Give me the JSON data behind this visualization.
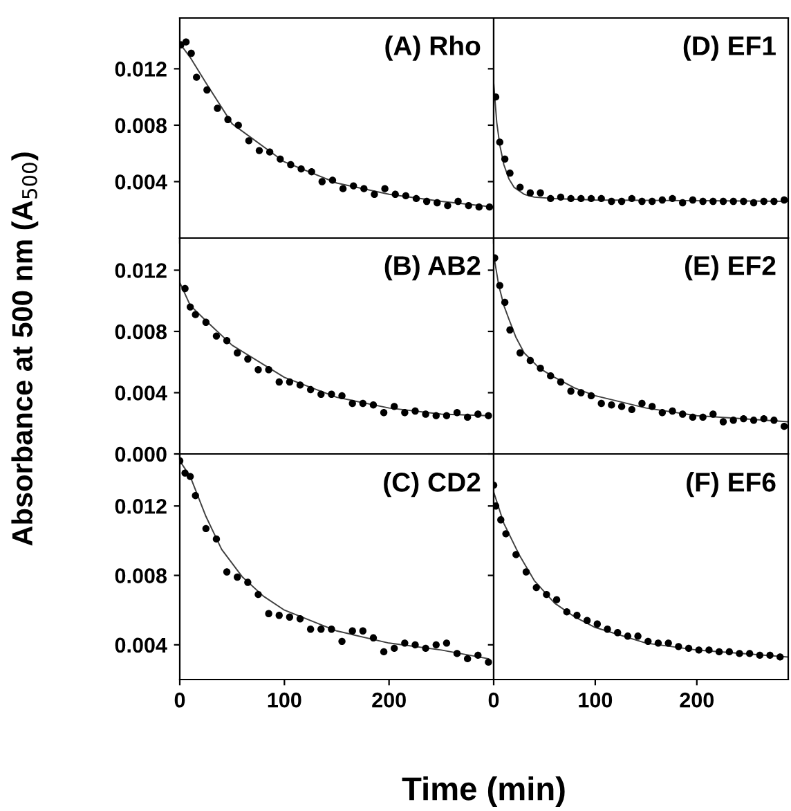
{
  "chart_data": [
    {
      "type": "scatter",
      "title": "(A) Rho",
      "xlim": [
        0,
        300
      ],
      "xticks": [
        0,
        100,
        200
      ],
      "ylim": [
        0,
        0.0156
      ],
      "yticks": [
        0.004,
        0.008,
        0.012
      ],
      "tick_labels": "y",
      "grid": false,
      "legend": false,
      "series": [
        {
          "color": "#000000",
          "marker": "circle",
          "x": [
            1,
            6,
            11,
            16,
            26,
            36,
            46,
            56,
            66,
            76,
            86,
            96,
            106,
            116,
            126,
            136,
            146,
            156,
            166,
            176,
            186,
            196,
            206,
            216,
            226,
            236,
            246,
            256,
            266,
            276,
            286,
            296
          ],
          "values": [
            0.0137,
            0.0139,
            0.0131,
            0.0114,
            0.0105,
            0.0092,
            0.0084,
            0.008,
            0.0069,
            0.0062,
            0.0061,
            0.0056,
            0.0052,
            0.0049,
            0.0047,
            0.004,
            0.0041,
            0.0035,
            0.0037,
            0.0035,
            0.0031,
            0.0035,
            0.0031,
            0.003,
            0.0028,
            0.0026,
            0.0025,
            0.0023,
            0.0026,
            0.0023,
            0.0022,
            0.0022
          ]
        },
        {
          "type": "line",
          "color": "#404040",
          "marker": "none",
          "x": [
            0,
            10,
            25,
            50,
            100,
            150,
            200,
            250,
            300
          ],
          "values": [
            0.0138,
            0.0128,
            0.011,
            0.0081,
            0.0054,
            0.0039,
            0.0031,
            0.0026,
            0.0022
          ]
        }
      ]
    },
    {
      "type": "scatter",
      "title": "(B) AB2",
      "ylabel": "Absorbance at 500 nm (A$_{500}$)",
      "xlim": [
        0,
        300
      ],
      "xticks": [
        0,
        100,
        200
      ],
      "ylim": [
        0,
        0.0141
      ],
      "yticks": [
        {
          "value": 0,
          "label": "0.000"
        },
        0.004,
        0.008,
        0.012
      ],
      "tick_labels": "y",
      "grid": false,
      "legend": false,
      "series": [
        {
          "color": "#000000",
          "marker": "circle",
          "x": [
            5,
            10,
            15,
            25,
            35,
            45,
            55,
            65,
            75,
            85,
            95,
            105,
            115,
            125,
            135,
            145,
            155,
            165,
            175,
            185,
            195,
            205,
            215,
            225,
            235,
            245,
            255,
            265,
            275,
            285,
            295
          ],
          "values": [
            0.0108,
            0.0096,
            0.0091,
            0.0086,
            0.0077,
            0.0074,
            0.0066,
            0.0062,
            0.0055,
            0.0055,
            0.0047,
            0.0047,
            0.0045,
            0.0042,
            0.0039,
            0.0039,
            0.0038,
            0.0033,
            0.0033,
            0.0032,
            0.0027,
            0.0031,
            0.0027,
            0.0028,
            0.0026,
            0.0025,
            0.0025,
            0.0027,
            0.0024,
            0.0026,
            0.0025
          ]
        },
        {
          "type": "line",
          "color": "#404040",
          "marker": "none",
          "x": [
            0,
            10,
            25,
            50,
            100,
            150,
            200,
            250,
            295
          ],
          "values": [
            0.0112,
            0.0097,
            0.0087,
            0.0071,
            0.005,
            0.0037,
            0.003,
            0.0026,
            0.0025
          ]
        }
      ]
    },
    {
      "type": "scatter",
      "title": "(C) CD2",
      "xlabel": "Time (min)",
      "xlim": [
        0,
        300
      ],
      "xticks": [
        0,
        100,
        200
      ],
      "ylim": [
        0.002,
        0.015
      ],
      "yticks": [
        0.004,
        0.008,
        0.012
      ],
      "grid": false,
      "legend": false,
      "series": [
        {
          "color": "#000000",
          "marker": "circle",
          "x": [
            0,
            5,
            10,
            15,
            25,
            35,
            45,
            55,
            65,
            75,
            85,
            95,
            105,
            115,
            125,
            135,
            145,
            155,
            165,
            175,
            185,
            195,
            205,
            215,
            225,
            235,
            245,
            255,
            265,
            275,
            285,
            295
          ],
          "values": [
            0.0146,
            0.0139,
            0.0137,
            0.0126,
            0.0107,
            0.0101,
            0.0082,
            0.0079,
            0.0076,
            0.0069,
            0.0058,
            0.0057,
            0.0056,
            0.0055,
            0.0049,
            0.0049,
            0.0049,
            0.0042,
            0.0048,
            0.0048,
            0.0044,
            0.0036,
            0.0038,
            0.0041,
            0.004,
            0.0038,
            0.004,
            0.0041,
            0.0035,
            0.0032,
            0.0034,
            0.003
          ]
        },
        {
          "type": "line",
          "color": "#404040",
          "marker": "none",
          "x": [
            0,
            10,
            25,
            40,
            60,
            80,
            100,
            150,
            200,
            250,
            295
          ],
          "values": [
            0.0146,
            0.0137,
            0.0114,
            0.0095,
            0.0079,
            0.0068,
            0.006,
            0.0048,
            0.0041,
            0.0037,
            0.0032
          ]
        }
      ]
    },
    {
      "type": "scatter",
      "title": "(D) EF1",
      "xlim": [
        0,
        290
      ],
      "xticks": [
        0,
        100,
        200
      ],
      "ylim": [
        0,
        0.0156
      ],
      "yticks": [
        0.004,
        0.008,
        0.012
      ],
      "tick_labels": false,
      "grid": false,
      "legend": false,
      "series": [
        {
          "color": "#000000",
          "marker": "circle",
          "x": [
            2,
            6,
            11,
            16,
            26,
            36,
            46,
            56,
            66,
            76,
            86,
            96,
            106,
            116,
            126,
            136,
            146,
            156,
            166,
            176,
            186,
            196,
            206,
            216,
            226,
            236,
            246,
            256,
            266,
            276,
            286
          ],
          "values": [
            0.01,
            0.0068,
            0.0056,
            0.0046,
            0.0036,
            0.0032,
            0.0032,
            0.0028,
            0.0029,
            0.0028,
            0.0028,
            0.0028,
            0.0028,
            0.0026,
            0.0026,
            0.0028,
            0.0026,
            0.0026,
            0.0027,
            0.0028,
            0.0025,
            0.0027,
            0.0026,
            0.0026,
            0.0026,
            0.0026,
            0.0026,
            0.0025,
            0.0026,
            0.0026,
            0.0027
          ]
        },
        {
          "type": "line",
          "color": "#404040",
          "marker": "none",
          "x": [
            0,
            3,
            6,
            10,
            15,
            20,
            30,
            40,
            60,
            100,
            290
          ],
          "values": [
            0.011,
            0.0082,
            0.0066,
            0.0052,
            0.0042,
            0.0036,
            0.0031,
            0.0029,
            0.0028,
            0.0027,
            0.0026
          ]
        }
      ]
    },
    {
      "type": "scatter",
      "title": "(E) EF2",
      "xlim": [
        0,
        290
      ],
      "xticks": [
        0,
        100,
        200
      ],
      "ylim": [
        0,
        0.0141
      ],
      "yticks": [
        0,
        0.004,
        0.008,
        0.012
      ],
      "tick_labels": false,
      "grid": false,
      "legend": false,
      "series": [
        {
          "color": "#000000",
          "marker": "circle",
          "x": [
            1,
            6,
            11,
            16,
            26,
            36,
            46,
            56,
            66,
            76,
            86,
            96,
            106,
            116,
            126,
            136,
            146,
            156,
            166,
            176,
            186,
            196,
            206,
            216,
            226,
            236,
            246,
            256,
            266,
            276,
            286
          ],
          "values": [
            0.0128,
            0.011,
            0.0099,
            0.0081,
            0.0066,
            0.0061,
            0.0056,
            0.0051,
            0.0047,
            0.0041,
            0.004,
            0.0038,
            0.0033,
            0.0032,
            0.0031,
            0.0029,
            0.0033,
            0.0031,
            0.0027,
            0.0028,
            0.0026,
            0.0024,
            0.0024,
            0.0026,
            0.0021,
            0.0022,
            0.0023,
            0.0022,
            0.0023,
            0.0022,
            0.0018
          ]
        },
        {
          "type": "line",
          "color": "#404040",
          "marker": "none",
          "x": [
            0,
            5,
            10,
            15,
            22,
            30,
            45,
            60,
            80,
            100,
            150,
            200,
            290
          ],
          "values": [
            0.013,
            0.011,
            0.0097,
            0.0088,
            0.0076,
            0.0066,
            0.0056,
            0.005,
            0.0043,
            0.0038,
            0.003,
            0.0025,
            0.0021
          ]
        }
      ]
    },
    {
      "type": "scatter",
      "title": "(F) EF6",
      "xlim": [
        0,
        290
      ],
      "xticks": [
        0,
        100,
        200
      ],
      "ylim": [
        0.002,
        0.015
      ],
      "yticks": [
        0.004,
        0.008,
        0.012
      ],
      "tick_labels": "x",
      "grid": false,
      "legend": false,
      "series": [
        {
          "color": "#000000",
          "marker": "circle",
          "x": [
            0,
            2,
            7,
            12,
            22,
            32,
            42,
            52,
            62,
            72,
            82,
            92,
            102,
            112,
            122,
            132,
            142,
            152,
            162,
            172,
            182,
            192,
            202,
            212,
            222,
            232,
            242,
            252,
            262,
            272,
            282
          ],
          "values": [
            0.0132,
            0.012,
            0.0112,
            0.0104,
            0.0092,
            0.0082,
            0.0073,
            0.0069,
            0.0066,
            0.0059,
            0.0057,
            0.0054,
            0.0052,
            0.0049,
            0.0047,
            0.0045,
            0.0045,
            0.0042,
            0.0041,
            0.0041,
            0.0039,
            0.0038,
            0.0037,
            0.0037,
            0.0036,
            0.0036,
            0.0035,
            0.0035,
            0.0034,
            0.0034,
            0.0033
          ]
        },
        {
          "type": "line",
          "color": "#404040",
          "marker": "none",
          "x": [
            0,
            10,
            25,
            40,
            60,
            80,
            100,
            150,
            200,
            290
          ],
          "values": [
            0.0128,
            0.011,
            0.0092,
            0.0077,
            0.0064,
            0.0056,
            0.005,
            0.0041,
            0.0037,
            0.0033
          ]
        }
      ]
    }
  ]
}
